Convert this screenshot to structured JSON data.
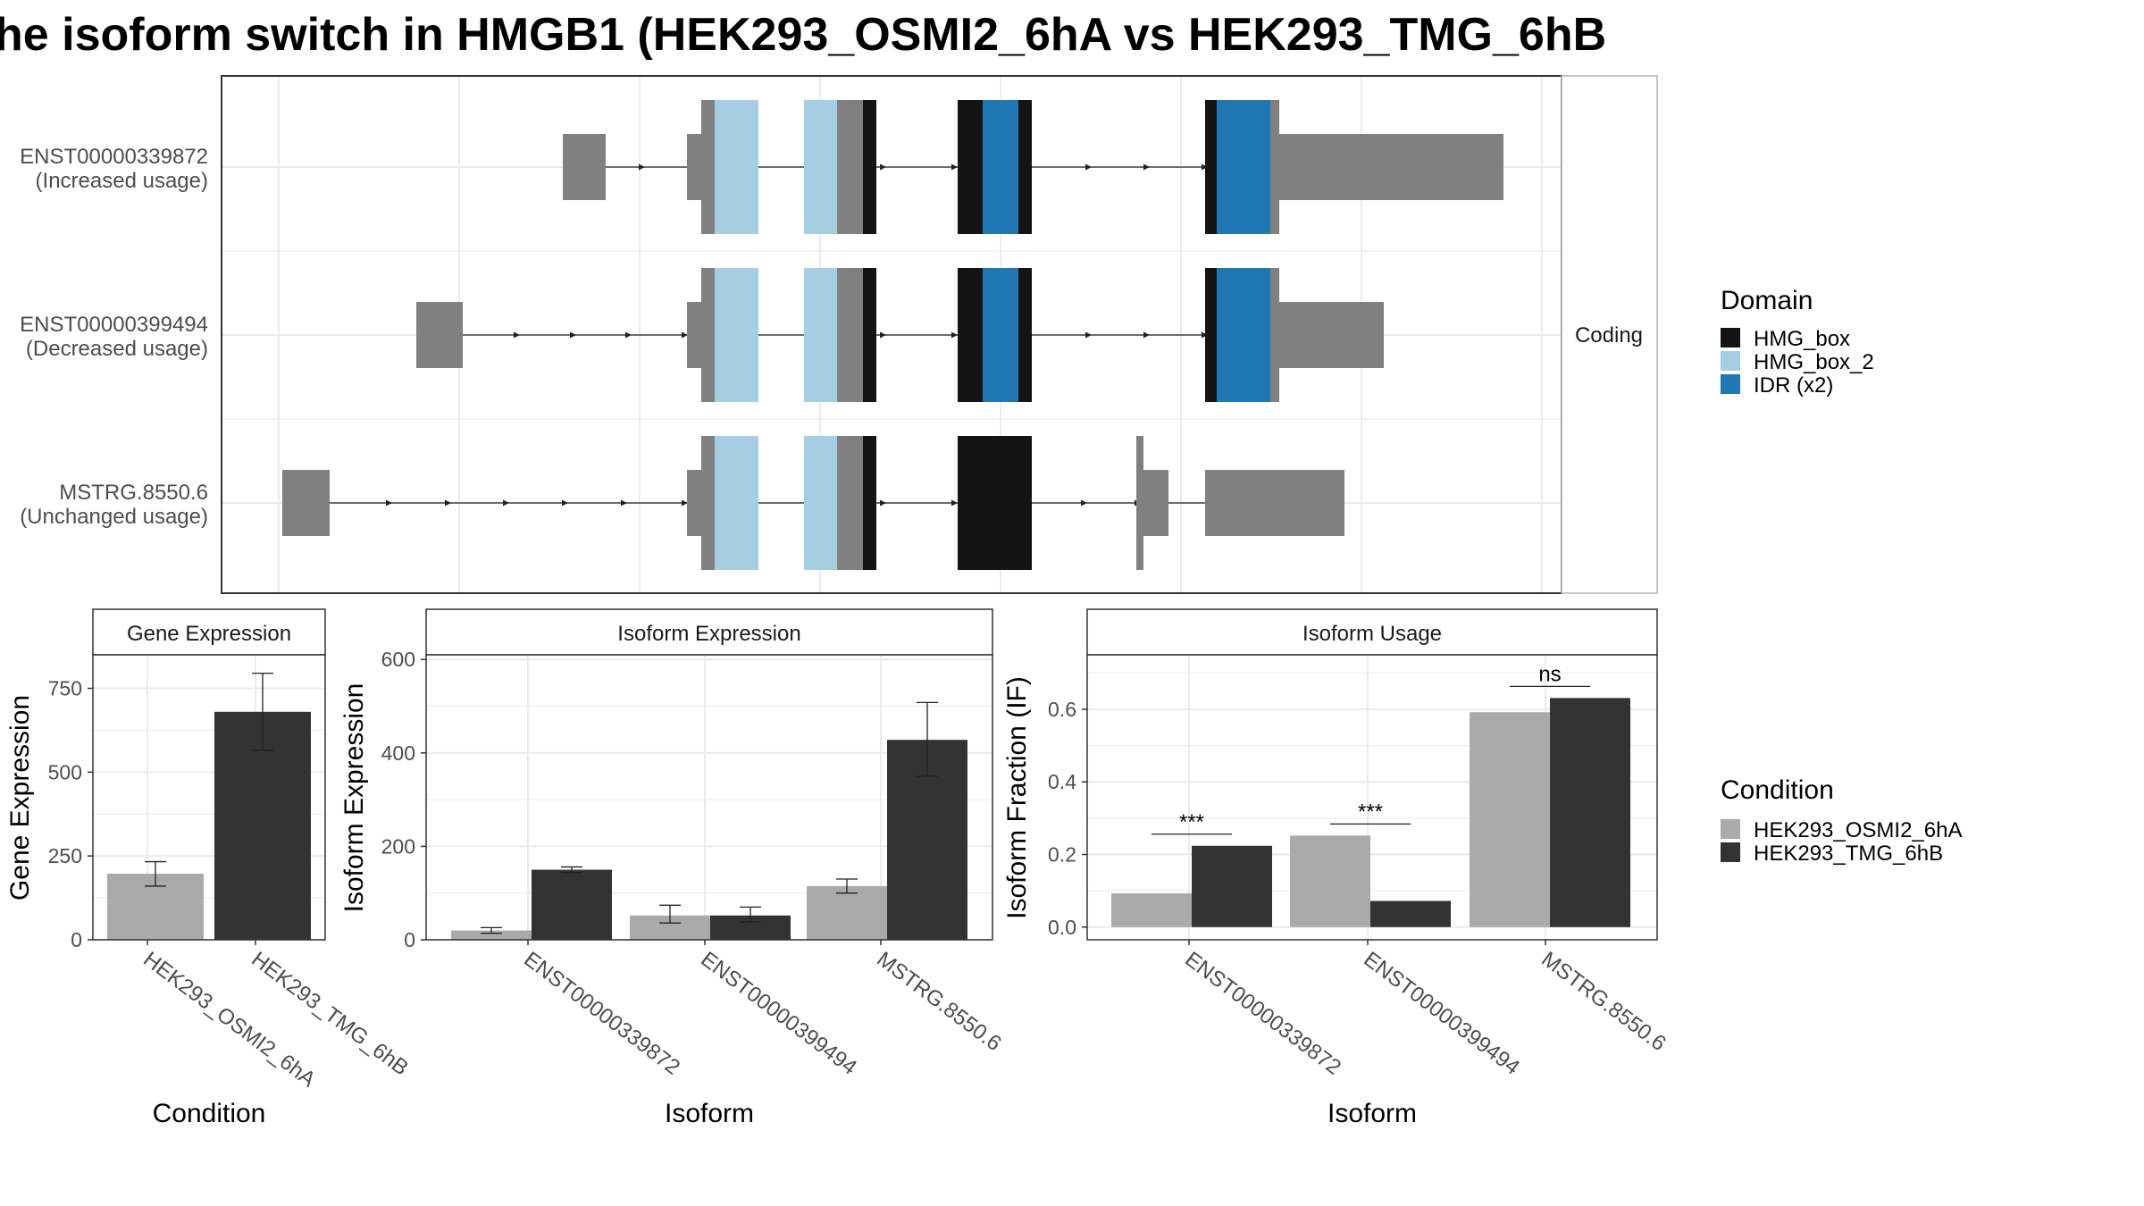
{
  "title": "he isoform switch in HMGB1 (HEK293_OSMI2_6hA vs HEK293_TMG_6hB",
  "colors": {
    "hmg_box": "#141414",
    "hmg_box_2": "#a6cee3",
    "idr": "#1f78b4",
    "utr": "#808080",
    "cond_a": "#aaaaaa",
    "cond_b": "#333333",
    "grid": "#ebebeb",
    "frame": "#333333"
  },
  "structure": {
    "facet_label": "Coding",
    "transcripts": [
      {
        "id": "ENST00000339872",
        "usage": "(Increased usage)"
      },
      {
        "id": "ENST00000399494",
        "usage": "(Decreased usage)"
      },
      {
        "id": "MSTRG.8550.6",
        "usage": "(Unchanged usage)"
      }
    ]
  },
  "legends": {
    "domain": {
      "title": "Domain",
      "items": [
        "HMG_box",
        "HMG_box_2",
        "IDR (x2)"
      ]
    },
    "condition": {
      "title": "Condition",
      "items": [
        "HEK293_OSMI2_6hA",
        "HEK293_TMG_6hB"
      ]
    }
  },
  "chart_data": [
    {
      "type": "bar",
      "title": "Gene Expression",
      "xlabel": "Condition",
      "ylabel": "Gene Expression",
      "categories": [
        "HEK293_OSMI2_6hA",
        "HEK293_TMG_6hB"
      ],
      "values": [
        197,
        680
      ],
      "errors": [
        [
          160,
          233
        ],
        [
          565,
          795
        ]
      ],
      "ylim": [
        0,
        850
      ],
      "yticks": [
        "0",
        "250",
        "500",
        "750"
      ],
      "ytick_values": [
        0,
        250,
        500,
        750
      ]
    },
    {
      "type": "bar",
      "title": "Isoform Expression",
      "xlabel": "Isoform",
      "ylabel": "Isoform Expression",
      "categories": [
        "ENST00000339872",
        "ENST00000399494",
        "MSTRG.8550.6"
      ],
      "series": [
        {
          "name": "HEK293_OSMI2_6hA",
          "values": [
            20,
            52,
            115
          ],
          "errors": [
            [
              14,
              26
            ],
            [
              36,
              74
            ],
            [
              100,
              130
            ]
          ]
        },
        {
          "name": "HEK293_TMG_6hB",
          "values": [
            150,
            52,
            428
          ],
          "errors": [
            [
              144,
              156
            ],
            [
              38,
              70
            ],
            [
              350,
              508
            ]
          ]
        }
      ],
      "ylim": [
        0,
        610
      ],
      "yticks": [
        "0",
        "200",
        "400",
        "600"
      ],
      "ytick_values": [
        0,
        200,
        400,
        600
      ]
    },
    {
      "type": "bar",
      "title": "Isoform Usage",
      "xlabel": "Isoform",
      "ylabel": "Isoform Fraction (IF)",
      "categories": [
        "ENST00000339872",
        "ENST00000399494",
        "MSTRG.8550.6"
      ],
      "series": [
        {
          "name": "HEK293_OSMI2_6hA",
          "values": [
            0.093,
            0.252,
            0.592
          ]
        },
        {
          "name": "HEK293_TMG_6hB",
          "values": [
            0.224,
            0.072,
            0.631
          ]
        }
      ],
      "significance": [
        "***",
        "***",
        "ns"
      ],
      "ylim": [
        -0.035,
        0.75
      ],
      "yticks": [
        "0.0",
        "0.2",
        "0.4",
        "0.6"
      ],
      "ytick_values": [
        0.0,
        0.2,
        0.4,
        0.6
      ]
    }
  ]
}
